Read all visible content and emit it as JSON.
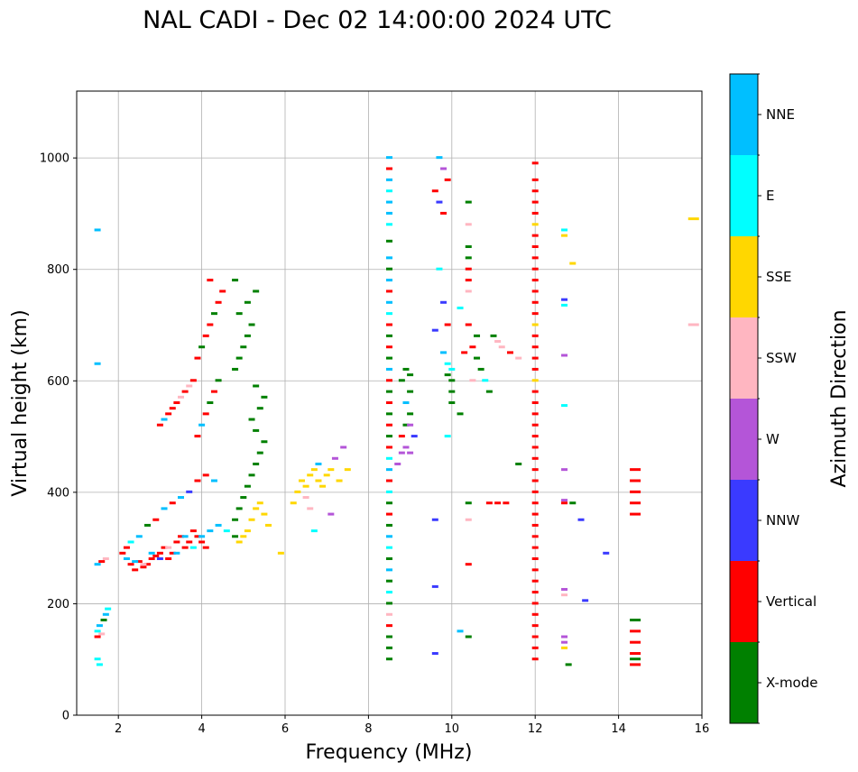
{
  "chart_data": {
    "type": "scatter",
    "title": "NAL CADI - Dec 02 14:00:00 2024 UTC",
    "xlabel": "Frequency (MHz)",
    "ylabel": "Virtual height (km)",
    "xlim": [
      1,
      16
    ],
    "ylim": [
      0,
      1120
    ],
    "xticks": [
      2,
      4,
      6,
      8,
      10,
      12,
      14,
      16
    ],
    "yticks": [
      0,
      200,
      400,
      600,
      800,
      1000
    ],
    "grid": true,
    "colorbar": {
      "label": "Azimuth Direction",
      "categories": [
        {
          "name": "X-mode",
          "color": "#008000"
        },
        {
          "name": "Vertical",
          "color": "#ff0000"
        },
        {
          "name": "NNW",
          "color": "#3a3aff"
        },
        {
          "name": "W",
          "color": "#b455d8"
        },
        {
          "name": "SSW",
          "color": "#ffb6c1"
        },
        {
          "name": "SSE",
          "color": "#ffd700"
        },
        {
          "name": "E",
          "color": "#00ffff"
        },
        {
          "name": "NNE",
          "color": "#00bfff"
        }
      ]
    },
    "points": [
      [
        1.5,
        140,
        1
      ],
      [
        1.5,
        150,
        6
      ],
      [
        1.55,
        160,
        7
      ],
      [
        1.6,
        145,
        4
      ],
      [
        1.65,
        170,
        0
      ],
      [
        1.7,
        180,
        7
      ],
      [
        1.75,
        190,
        6
      ],
      [
        1.5,
        270,
        7
      ],
      [
        1.6,
        275,
        1
      ],
      [
        1.7,
        280,
        4
      ],
      [
        1.5,
        630,
        7
      ],
      [
        1.5,
        870,
        7
      ],
      [
        1.5,
        100,
        6
      ],
      [
        1.55,
        90,
        6
      ],
      [
        2.1,
        290,
        1
      ],
      [
        2.2,
        300,
        1
      ],
      [
        2.3,
        270,
        1
      ],
      [
        2.4,
        260,
        1
      ],
      [
        2.5,
        275,
        1
      ],
      [
        2.6,
        265,
        1
      ],
      [
        2.7,
        270,
        1
      ],
      [
        2.8,
        280,
        1
      ],
      [
        2.9,
        285,
        1
      ],
      [
        3.0,
        290,
        1
      ],
      [
        3.1,
        300,
        1
      ],
      [
        3.2,
        280,
        1
      ],
      [
        3.3,
        290,
        1
      ],
      [
        3.4,
        310,
        1
      ],
      [
        3.5,
        320,
        1
      ],
      [
        3.6,
        300,
        1
      ],
      [
        3.7,
        310,
        1
      ],
      [
        3.8,
        330,
        1
      ],
      [
        3.9,
        320,
        1
      ],
      [
        4.0,
        310,
        1
      ],
      [
        4.1,
        300,
        1
      ],
      [
        2.2,
        280,
        7
      ],
      [
        2.4,
        275,
        7
      ],
      [
        2.6,
        270,
        4
      ],
      [
        2.8,
        290,
        7
      ],
      [
        3.0,
        280,
        2
      ],
      [
        3.2,
        300,
        4
      ],
      [
        3.4,
        290,
        7
      ],
      [
        3.6,
        320,
        7
      ],
      [
        3.8,
        300,
        6
      ],
      [
        4.0,
        320,
        7
      ],
      [
        4.2,
        330,
        7
      ],
      [
        4.4,
        340,
        7
      ],
      [
        4.6,
        330,
        6
      ],
      [
        4.8,
        320,
        0
      ],
      [
        2.3,
        310,
        6
      ],
      [
        2.5,
        320,
        7
      ],
      [
        2.7,
        340,
        0
      ],
      [
        2.9,
        350,
        1
      ],
      [
        3.1,
        370,
        7
      ],
      [
        3.3,
        380,
        1
      ],
      [
        3.5,
        390,
        7
      ],
      [
        3.7,
        400,
        2
      ],
      [
        3.9,
        420,
        1
      ],
      [
        4.1,
        430,
        1
      ],
      [
        4.3,
        420,
        7
      ],
      [
        3.9,
        500,
        1
      ],
      [
        4.0,
        520,
        7
      ],
      [
        4.1,
        540,
        1
      ],
      [
        4.2,
        560,
        0
      ],
      [
        4.3,
        580,
        1
      ],
      [
        4.4,
        600,
        0
      ],
      [
        3.8,
        600,
        1
      ],
      [
        3.7,
        590,
        4
      ],
      [
        3.6,
        580,
        1
      ],
      [
        3.5,
        570,
        4
      ],
      [
        3.4,
        560,
        1
      ],
      [
        3.3,
        550,
        1
      ],
      [
        3.2,
        540,
        1
      ],
      [
        3.1,
        530,
        7
      ],
      [
        3.0,
        520,
        1
      ],
      [
        3.9,
        640,
        1
      ],
      [
        4.0,
        660,
        0
      ],
      [
        4.1,
        680,
        1
      ],
      [
        4.2,
        700,
        1
      ],
      [
        4.3,
        720,
        0
      ],
      [
        4.4,
        740,
        1
      ],
      [
        4.5,
        760,
        1
      ],
      [
        4.2,
        780,
        1
      ],
      [
        4.8,
        350,
        0
      ],
      [
        4.9,
        370,
        0
      ],
      [
        5.0,
        390,
        0
      ],
      [
        5.1,
        410,
        0
      ],
      [
        5.2,
        430,
        0
      ],
      [
        5.3,
        450,
        0
      ],
      [
        5.4,
        470,
        0
      ],
      [
        5.5,
        490,
        0
      ],
      [
        5.3,
        510,
        0
      ],
      [
        5.2,
        530,
        0
      ],
      [
        5.4,
        550,
        0
      ],
      [
        5.5,
        570,
        0
      ],
      [
        5.3,
        590,
        0
      ],
      [
        4.8,
        620,
        0
      ],
      [
        4.9,
        640,
        0
      ],
      [
        5.0,
        660,
        0
      ],
      [
        5.1,
        680,
        0
      ],
      [
        5.2,
        700,
        0
      ],
      [
        4.9,
        720,
        0
      ],
      [
        5.1,
        740,
        0
      ],
      [
        5.3,
        760,
        0
      ],
      [
        4.8,
        780,
        0
      ],
      [
        5.2,
        350,
        5
      ],
      [
        5.3,
        370,
        5
      ],
      [
        5.4,
        380,
        5
      ],
      [
        5.5,
        360,
        5
      ],
      [
        5.6,
        340,
        5
      ],
      [
        5.1,
        330,
        5
      ],
      [
        5.0,
        320,
        5
      ],
      [
        4.9,
        310,
        5
      ],
      [
        6.2,
        380,
        5
      ],
      [
        6.3,
        400,
        5
      ],
      [
        6.4,
        420,
        5
      ],
      [
        6.5,
        410,
        5
      ],
      [
        6.6,
        430,
        5
      ],
      [
        6.7,
        440,
        5
      ],
      [
        6.8,
        420,
        5
      ],
      [
        6.9,
        410,
        5
      ],
      [
        7.0,
        430,
        5
      ],
      [
        7.1,
        440,
        5
      ],
      [
        6.5,
        390,
        4
      ],
      [
        6.6,
        370,
        4
      ],
      [
        6.8,
        450,
        7
      ],
      [
        7.2,
        460,
        3
      ],
      [
        7.4,
        480,
        3
      ],
      [
        7.5,
        440,
        5
      ],
      [
        8.5,
        1000,
        7
      ],
      [
        8.5,
        980,
        1
      ],
      [
        8.5,
        960,
        7
      ],
      [
        8.5,
        940,
        6
      ],
      [
        8.5,
        920,
        7
      ],
      [
        8.5,
        900,
        7
      ],
      [
        8.5,
        880,
        6
      ],
      [
        8.5,
        850,
        0
      ],
      [
        8.5,
        820,
        7
      ],
      [
        8.5,
        800,
        0
      ],
      [
        8.5,
        780,
        7
      ],
      [
        8.5,
        760,
        1
      ],
      [
        8.5,
        740,
        7
      ],
      [
        8.5,
        720,
        6
      ],
      [
        8.5,
        700,
        1
      ],
      [
        8.5,
        680,
        0
      ],
      [
        8.5,
        660,
        1
      ],
      [
        8.5,
        640,
        0
      ],
      [
        8.5,
        620,
        7
      ],
      [
        8.5,
        600,
        1
      ],
      [
        8.5,
        580,
        0
      ],
      [
        8.5,
        560,
        1
      ],
      [
        8.5,
        540,
        0
      ],
      [
        8.5,
        520,
        1
      ],
      [
        8.5,
        500,
        0
      ],
      [
        8.5,
        480,
        1
      ],
      [
        8.5,
        460,
        6
      ],
      [
        8.5,
        440,
        7
      ],
      [
        8.5,
        420,
        1
      ],
      [
        8.5,
        400,
        6
      ],
      [
        8.5,
        380,
        0
      ],
      [
        8.5,
        360,
        1
      ],
      [
        8.5,
        340,
        0
      ],
      [
        8.5,
        320,
        7
      ],
      [
        8.5,
        300,
        6
      ],
      [
        8.5,
        280,
        0
      ],
      [
        8.5,
        260,
        7
      ],
      [
        8.5,
        240,
        0
      ],
      [
        8.5,
        220,
        6
      ],
      [
        8.5,
        200,
        0
      ],
      [
        8.5,
        180,
        4
      ],
      [
        8.5,
        160,
        1
      ],
      [
        8.5,
        140,
        0
      ],
      [
        8.5,
        120,
        0
      ],
      [
        8.5,
        100,
        0
      ],
      [
        8.7,
        450,
        3
      ],
      [
        8.8,
        470,
        3
      ],
      [
        8.9,
        480,
        3
      ],
      [
        9.0,
        470,
        3
      ],
      [
        8.8,
        500,
        1
      ],
      [
        8.9,
        520,
        0
      ],
      [
        9.0,
        540,
        0
      ],
      [
        8.9,
        560,
        7
      ],
      [
        9.0,
        580,
        0
      ],
      [
        9.1,
        500,
        2
      ],
      [
        9.0,
        520,
        3
      ],
      [
        8.8,
        600,
        0
      ],
      [
        8.9,
        620,
        0
      ],
      [
        9.0,
        610,
        0
      ],
      [
        9.7,
        1000,
        7
      ],
      [
        9.8,
        980,
        3
      ],
      [
        9.9,
        960,
        1
      ],
      [
        9.6,
        940,
        1
      ],
      [
        9.7,
        920,
        2
      ],
      [
        9.8,
        900,
        1
      ],
      [
        9.7,
        800,
        6
      ],
      [
        9.8,
        740,
        2
      ],
      [
        9.9,
        700,
        1
      ],
      [
        9.6,
        690,
        2
      ],
      [
        9.8,
        650,
        7
      ],
      [
        9.9,
        630,
        6
      ],
      [
        10.0,
        620,
        6
      ],
      [
        9.9,
        610,
        0
      ],
      [
        10.0,
        600,
        0
      ],
      [
        10.0,
        580,
        0
      ],
      [
        10.0,
        560,
        0
      ],
      [
        10.2,
        540,
        0
      ],
      [
        9.9,
        500,
        6
      ],
      [
        10.4,
        920,
        0
      ],
      [
        10.4,
        880,
        4
      ],
      [
        10.4,
        840,
        0
      ],
      [
        10.4,
        820,
        0
      ],
      [
        10.4,
        800,
        1
      ],
      [
        10.4,
        780,
        1
      ],
      [
        10.4,
        760,
        4
      ],
      [
        10.2,
        730,
        6
      ],
      [
        10.4,
        700,
        1
      ],
      [
        10.6,
        680,
        0
      ],
      [
        10.5,
        660,
        1
      ],
      [
        10.6,
        640,
        0
      ],
      [
        10.7,
        620,
        0
      ],
      [
        10.8,
        600,
        6
      ],
      [
        10.9,
        580,
        0
      ],
      [
        10.3,
        650,
        1
      ],
      [
        10.5,
        600,
        4
      ],
      [
        11.0,
        680,
        0
      ],
      [
        11.1,
        670,
        4
      ],
      [
        11.2,
        660,
        4
      ],
      [
        11.4,
        650,
        1
      ],
      [
        11.6,
        640,
        4
      ],
      [
        10.9,
        380,
        1
      ],
      [
        11.1,
        380,
        1
      ],
      [
        11.3,
        380,
        1
      ],
      [
        10.4,
        380,
        0
      ],
      [
        10.4,
        350,
        4
      ],
      [
        10.4,
        270,
        1
      ],
      [
        10.2,
        150,
        7
      ],
      [
        10.4,
        140,
        0
      ],
      [
        9.6,
        230,
        2
      ],
      [
        9.6,
        110,
        2
      ],
      [
        9.6,
        350,
        2
      ],
      [
        11.6,
        450,
        0
      ],
      [
        12.0,
        990,
        1
      ],
      [
        12.0,
        960,
        1
      ],
      [
        12.0,
        940,
        1
      ],
      [
        12.0,
        920,
        1
      ],
      [
        12.0,
        900,
        1
      ],
      [
        12.0,
        880,
        5
      ],
      [
        12.0,
        860,
        1
      ],
      [
        12.0,
        840,
        1
      ],
      [
        12.0,
        820,
        1
      ],
      [
        12.0,
        800,
        1
      ],
      [
        12.0,
        780,
        1
      ],
      [
        12.0,
        760,
        1
      ],
      [
        12.0,
        740,
        1
      ],
      [
        12.0,
        720,
        1
      ],
      [
        12.0,
        700,
        5
      ],
      [
        12.0,
        680,
        1
      ],
      [
        12.0,
        660,
        1
      ],
      [
        12.0,
        640,
        1
      ],
      [
        12.0,
        620,
        1
      ],
      [
        12.0,
        600,
        5
      ],
      [
        12.0,
        580,
        1
      ],
      [
        12.0,
        560,
        1
      ],
      [
        12.0,
        540,
        1
      ],
      [
        12.0,
        520,
        1
      ],
      [
        12.0,
        500,
        1
      ],
      [
        12.0,
        480,
        1
      ],
      [
        12.0,
        460,
        1
      ],
      [
        12.0,
        440,
        1
      ],
      [
        12.0,
        420,
        1
      ],
      [
        12.0,
        400,
        1
      ],
      [
        12.0,
        380,
        1
      ],
      [
        12.0,
        360,
        1
      ],
      [
        12.0,
        340,
        1
      ],
      [
        12.0,
        320,
        1
      ],
      [
        12.0,
        300,
        1
      ],
      [
        12.0,
        280,
        1
      ],
      [
        12.0,
        260,
        1
      ],
      [
        12.0,
        240,
        1
      ],
      [
        12.0,
        220,
        1
      ],
      [
        12.0,
        200,
        1
      ],
      [
        12.0,
        180,
        1
      ],
      [
        12.0,
        160,
        1
      ],
      [
        12.0,
        140,
        1
      ],
      [
        12.0,
        120,
        1
      ],
      [
        12.0,
        100,
        1
      ],
      [
        12.7,
        870,
        6
      ],
      [
        12.7,
        860,
        5
      ],
      [
        12.9,
        810,
        5
      ],
      [
        12.7,
        745,
        2
      ],
      [
        12.7,
        735,
        6
      ],
      [
        12.7,
        645,
        3
      ],
      [
        12.7,
        555,
        6
      ],
      [
        12.7,
        440,
        3
      ],
      [
        12.7,
        385,
        3
      ],
      [
        12.7,
        380,
        1
      ],
      [
        12.9,
        380,
        0
      ],
      [
        13.1,
        350,
        2
      ],
      [
        13.7,
        290,
        2
      ],
      [
        12.7,
        225,
        3
      ],
      [
        12.7,
        215,
        4
      ],
      [
        13.2,
        205,
        2
      ],
      [
        12.7,
        140,
        3
      ],
      [
        12.7,
        130,
        3
      ],
      [
        12.7,
        120,
        5
      ],
      [
        12.8,
        90,
        0
      ],
      [
        14.4,
        440,
        1
      ],
      [
        14.4,
        420,
        1
      ],
      [
        14.4,
        400,
        1
      ],
      [
        14.4,
        380,
        1
      ],
      [
        14.4,
        360,
        1
      ],
      [
        14.4,
        170,
        0
      ],
      [
        14.4,
        150,
        1
      ],
      [
        14.4,
        130,
        1
      ],
      [
        14.4,
        110,
        1
      ],
      [
        14.4,
        100,
        0
      ],
      [
        14.4,
        90,
        1
      ],
      [
        15.8,
        890,
        5
      ],
      [
        15.8,
        700,
        4
      ],
      [
        5.9,
        290,
        5
      ],
      [
        6.7,
        330,
        6
      ],
      [
        7.3,
        420,
        5
      ],
      [
        7.1,
        360,
        3
      ]
    ]
  }
}
